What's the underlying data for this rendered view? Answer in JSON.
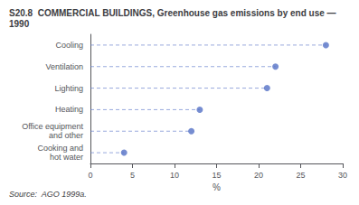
{
  "chart_data": {
    "type": "dot",
    "title": "S20.8  COMMERCIAL BUILDINGS, Greenhouse gas emissions by end use — 1990",
    "subtitle": "Source:  AGO 1999a.",
    "categories": [
      "Cooling",
      "Ventilation",
      "Lighting",
      "Heating",
      "Office equipment\nand other",
      "Cooking and\nhot water"
    ],
    "values": [
      28,
      22,
      21,
      13,
      12,
      4
    ],
    "xlabel": "%",
    "xlim": [
      0,
      30
    ],
    "xticks": [
      0,
      5,
      10,
      15,
      20,
      25,
      30
    ],
    "marker": "circle",
    "line_style": "dashed",
    "grid": false
  }
}
